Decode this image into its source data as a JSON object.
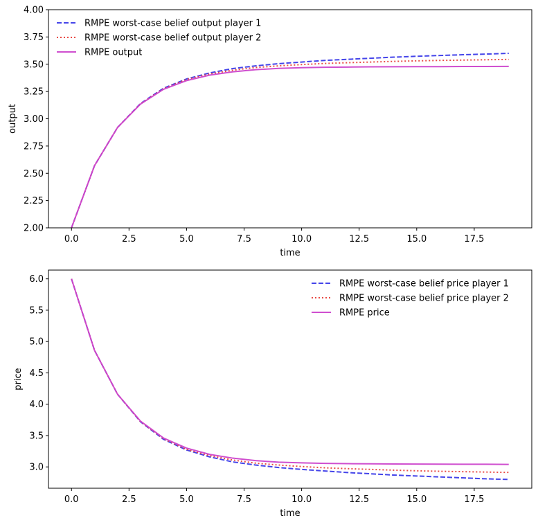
{
  "chart_data": [
    {
      "type": "line",
      "title": "",
      "xlabel": "time",
      "ylabel": "output",
      "xlim": [
        -1,
        20
      ],
      "ylim": [
        2.0,
        4.0
      ],
      "x_ticks": [
        0.0,
        2.5,
        5.0,
        7.5,
        10.0,
        12.5,
        15.0,
        17.5
      ],
      "x_tick_labels": [
        "0.0",
        "2.5",
        "5.0",
        "7.5",
        "10.0",
        "12.5",
        "15.0",
        "17.5"
      ],
      "y_ticks": [
        2.0,
        2.25,
        2.5,
        2.75,
        3.0,
        3.25,
        3.5,
        3.75,
        4.0
      ],
      "y_tick_labels": [
        "2.00",
        "2.25",
        "2.50",
        "2.75",
        "3.00",
        "3.25",
        "3.50",
        "3.75",
        "4.00"
      ],
      "grid": false,
      "legend_position": "top-left",
      "x": [
        0,
        1,
        2,
        3,
        4,
        5,
        6,
        7,
        8,
        9,
        10,
        11,
        12,
        13,
        14,
        15,
        16,
        17,
        18,
        19
      ],
      "series": [
        {
          "name": "RMPE worst-case belief output player 1",
          "color": "#3a3ae8",
          "style": "dashed",
          "values": [
            2.0,
            2.57,
            2.92,
            3.14,
            3.28,
            3.365,
            3.42,
            3.46,
            3.485,
            3.505,
            3.52,
            3.535,
            3.545,
            3.555,
            3.565,
            3.573,
            3.58,
            3.587,
            3.593,
            3.6
          ]
        },
        {
          "name": "RMPE worst-case belief output player 2",
          "color": "#e8403a",
          "style": "dotted",
          "values": [
            2.0,
            2.57,
            2.92,
            3.138,
            3.275,
            3.36,
            3.41,
            3.445,
            3.47,
            3.485,
            3.497,
            3.507,
            3.514,
            3.52,
            3.526,
            3.531,
            3.535,
            3.538,
            3.541,
            3.544
          ]
        },
        {
          "name": "RMPE output",
          "color": "#cc44cc",
          "style": "solid",
          "values": [
            2.0,
            2.57,
            2.92,
            3.135,
            3.27,
            3.35,
            3.4,
            3.43,
            3.45,
            3.462,
            3.468,
            3.472,
            3.474,
            3.476,
            3.477,
            3.478,
            3.478,
            3.479,
            3.479,
            3.48
          ]
        }
      ]
    },
    {
      "type": "line",
      "title": "",
      "xlabel": "time",
      "ylabel": "price",
      "xlim": [
        -1,
        20
      ],
      "ylim": [
        2.66,
        6.14
      ],
      "x_ticks": [
        0.0,
        2.5,
        5.0,
        7.5,
        10.0,
        12.5,
        15.0,
        17.5
      ],
      "x_tick_labels": [
        "0.0",
        "2.5",
        "5.0",
        "7.5",
        "10.0",
        "12.5",
        "15.0",
        "17.5"
      ],
      "y_ticks": [
        3.0,
        3.5,
        4.0,
        4.5,
        5.0,
        5.5,
        6.0
      ],
      "y_tick_labels": [
        "3.0",
        "3.5",
        "4.0",
        "4.5",
        "5.0",
        "5.5",
        "6.0"
      ],
      "grid": false,
      "legend_position": "top-right",
      "x": [
        0,
        1,
        2,
        3,
        4,
        5,
        6,
        7,
        8,
        9,
        10,
        11,
        12,
        13,
        14,
        15,
        16,
        17,
        18,
        19
      ],
      "series": [
        {
          "name": "RMPE worst-case belief price player 1",
          "color": "#3a3ae8",
          "style": "dashed",
          "values": [
            6.0,
            4.86,
            4.16,
            3.72,
            3.44,
            3.27,
            3.16,
            3.08,
            3.03,
            2.99,
            2.96,
            2.935,
            2.91,
            2.89,
            2.87,
            2.855,
            2.84,
            2.825,
            2.81,
            2.8
          ]
        },
        {
          "name": "RMPE worst-case belief price player 2",
          "color": "#e8403a",
          "style": "dotted",
          "values": [
            6.0,
            4.86,
            4.16,
            3.724,
            3.45,
            3.28,
            3.18,
            3.11,
            3.06,
            3.03,
            3.006,
            2.986,
            2.972,
            2.96,
            2.948,
            2.938,
            2.93,
            2.924,
            2.918,
            2.912
          ]
        },
        {
          "name": "RMPE price",
          "color": "#cc44cc",
          "style": "solid",
          "values": [
            6.0,
            4.86,
            4.16,
            3.73,
            3.46,
            3.3,
            3.2,
            3.14,
            3.1,
            3.076,
            3.064,
            3.056,
            3.052,
            3.049,
            3.047,
            3.045,
            3.044,
            3.043,
            3.042,
            3.04
          ]
        }
      ]
    }
  ]
}
